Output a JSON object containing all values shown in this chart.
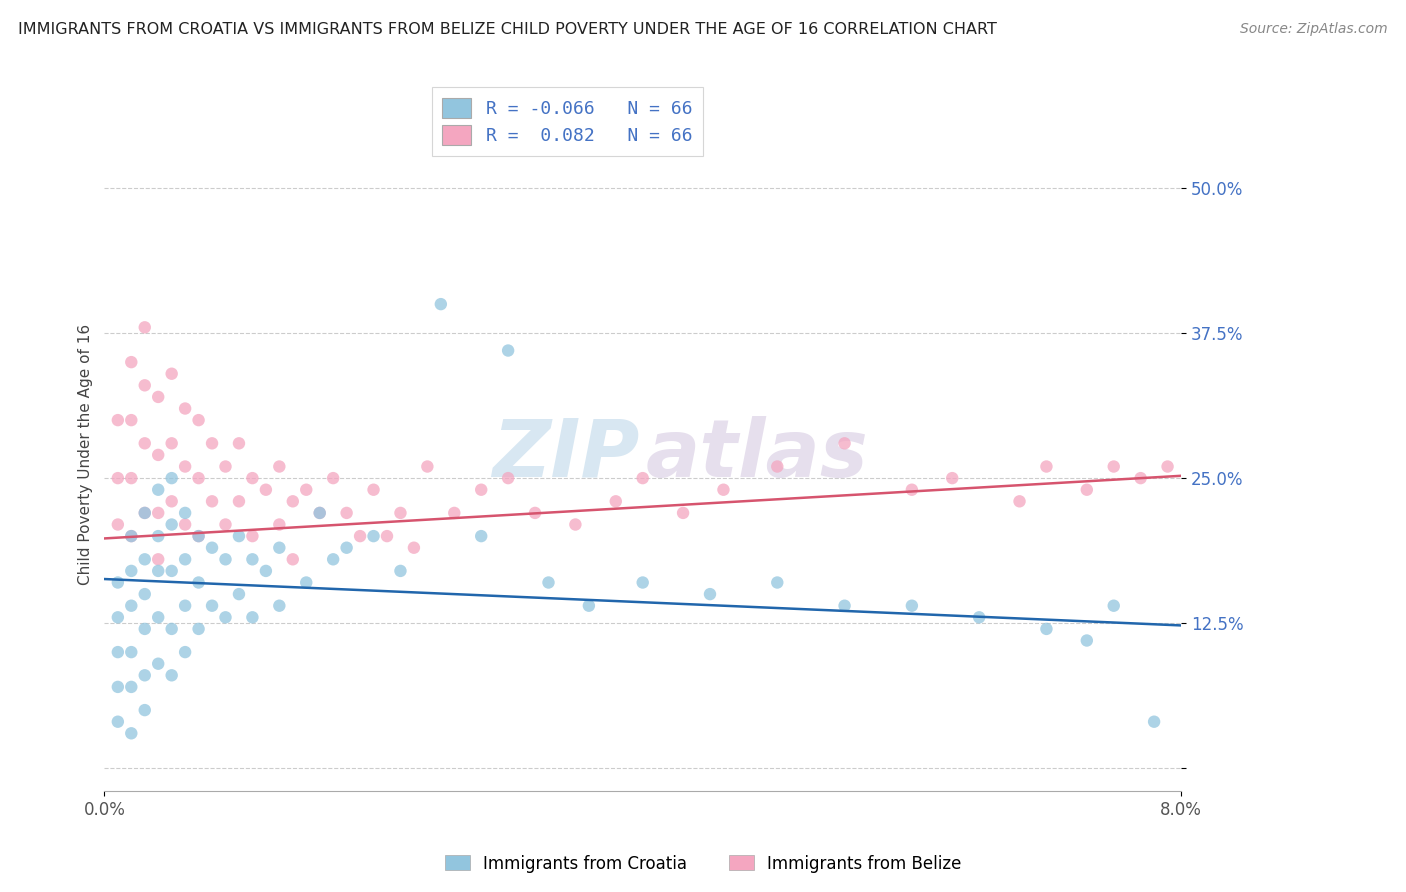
{
  "title": "IMMIGRANTS FROM CROATIA VS IMMIGRANTS FROM BELIZE CHILD POVERTY UNDER THE AGE OF 16 CORRELATION CHART",
  "source": "Source: ZipAtlas.com",
  "ylabel": "Child Poverty Under the Age of 16",
  "legend_labels": [
    "Immigrants from Croatia",
    "Immigrants from Belize"
  ],
  "legend_r": [
    -0.066,
    0.082
  ],
  "legend_n": [
    66,
    66
  ],
  "colors": [
    "#92c5de",
    "#f4a6c0"
  ],
  "line_colors": [
    "#2166ac",
    "#d6546e"
  ],
  "yticks": [
    0.0,
    0.125,
    0.25,
    0.375,
    0.5
  ],
  "ytick_labels": [
    "",
    "12.5%",
    "25.0%",
    "37.5%",
    "50.0%"
  ],
  "xlim": [
    0.0,
    0.08
  ],
  "ylim": [
    -0.02,
    0.56
  ],
  "title_fontsize": 11.5,
  "source_fontsize": 10,
  "axis_label_fontsize": 11,
  "tick_fontsize": 12,
  "watermark_color": "#c8dff0",
  "watermark_color2": "#d4c8e8",
  "croatia_scatter_x": [
    0.001,
    0.001,
    0.001,
    0.001,
    0.001,
    0.002,
    0.002,
    0.002,
    0.002,
    0.002,
    0.002,
    0.003,
    0.003,
    0.003,
    0.003,
    0.003,
    0.003,
    0.004,
    0.004,
    0.004,
    0.004,
    0.004,
    0.005,
    0.005,
    0.005,
    0.005,
    0.005,
    0.006,
    0.006,
    0.006,
    0.006,
    0.007,
    0.007,
    0.007,
    0.008,
    0.008,
    0.009,
    0.009,
    0.01,
    0.01,
    0.011,
    0.011,
    0.012,
    0.013,
    0.013,
    0.015,
    0.016,
    0.017,
    0.018,
    0.02,
    0.022,
    0.025,
    0.028,
    0.03,
    0.033,
    0.036,
    0.04,
    0.045,
    0.05,
    0.055,
    0.06,
    0.065,
    0.07,
    0.073,
    0.075,
    0.078
  ],
  "croatia_scatter_y": [
    0.16,
    0.13,
    0.1,
    0.07,
    0.04,
    0.2,
    0.17,
    0.14,
    0.1,
    0.07,
    0.03,
    0.22,
    0.18,
    0.15,
    0.12,
    0.08,
    0.05,
    0.24,
    0.2,
    0.17,
    0.13,
    0.09,
    0.25,
    0.21,
    0.17,
    0.12,
    0.08,
    0.22,
    0.18,
    0.14,
    0.1,
    0.2,
    0.16,
    0.12,
    0.19,
    0.14,
    0.18,
    0.13,
    0.2,
    0.15,
    0.18,
    0.13,
    0.17,
    0.19,
    0.14,
    0.16,
    0.22,
    0.18,
    0.19,
    0.2,
    0.17,
    0.4,
    0.2,
    0.36,
    0.16,
    0.14,
    0.16,
    0.15,
    0.16,
    0.14,
    0.14,
    0.13,
    0.12,
    0.11,
    0.14,
    0.04
  ],
  "belize_scatter_x": [
    0.001,
    0.001,
    0.001,
    0.002,
    0.002,
    0.002,
    0.002,
    0.003,
    0.003,
    0.003,
    0.003,
    0.004,
    0.004,
    0.004,
    0.004,
    0.005,
    0.005,
    0.005,
    0.006,
    0.006,
    0.006,
    0.007,
    0.007,
    0.007,
    0.008,
    0.008,
    0.009,
    0.009,
    0.01,
    0.01,
    0.011,
    0.011,
    0.012,
    0.013,
    0.013,
    0.014,
    0.014,
    0.015,
    0.016,
    0.017,
    0.018,
    0.019,
    0.02,
    0.021,
    0.022,
    0.023,
    0.024,
    0.026,
    0.028,
    0.03,
    0.032,
    0.035,
    0.038,
    0.04,
    0.043,
    0.046,
    0.05,
    0.055,
    0.06,
    0.063,
    0.068,
    0.07,
    0.073,
    0.075,
    0.077,
    0.079
  ],
  "belize_scatter_y": [
    0.3,
    0.25,
    0.21,
    0.35,
    0.3,
    0.25,
    0.2,
    0.38,
    0.33,
    0.28,
    0.22,
    0.32,
    0.27,
    0.22,
    0.18,
    0.34,
    0.28,
    0.23,
    0.31,
    0.26,
    0.21,
    0.3,
    0.25,
    0.2,
    0.28,
    0.23,
    0.26,
    0.21,
    0.28,
    0.23,
    0.25,
    0.2,
    0.24,
    0.26,
    0.21,
    0.23,
    0.18,
    0.24,
    0.22,
    0.25,
    0.22,
    0.2,
    0.24,
    0.2,
    0.22,
    0.19,
    0.26,
    0.22,
    0.24,
    0.25,
    0.22,
    0.21,
    0.23,
    0.25,
    0.22,
    0.24,
    0.26,
    0.28,
    0.24,
    0.25,
    0.23,
    0.26,
    0.24,
    0.26,
    0.25,
    0.26
  ]
}
